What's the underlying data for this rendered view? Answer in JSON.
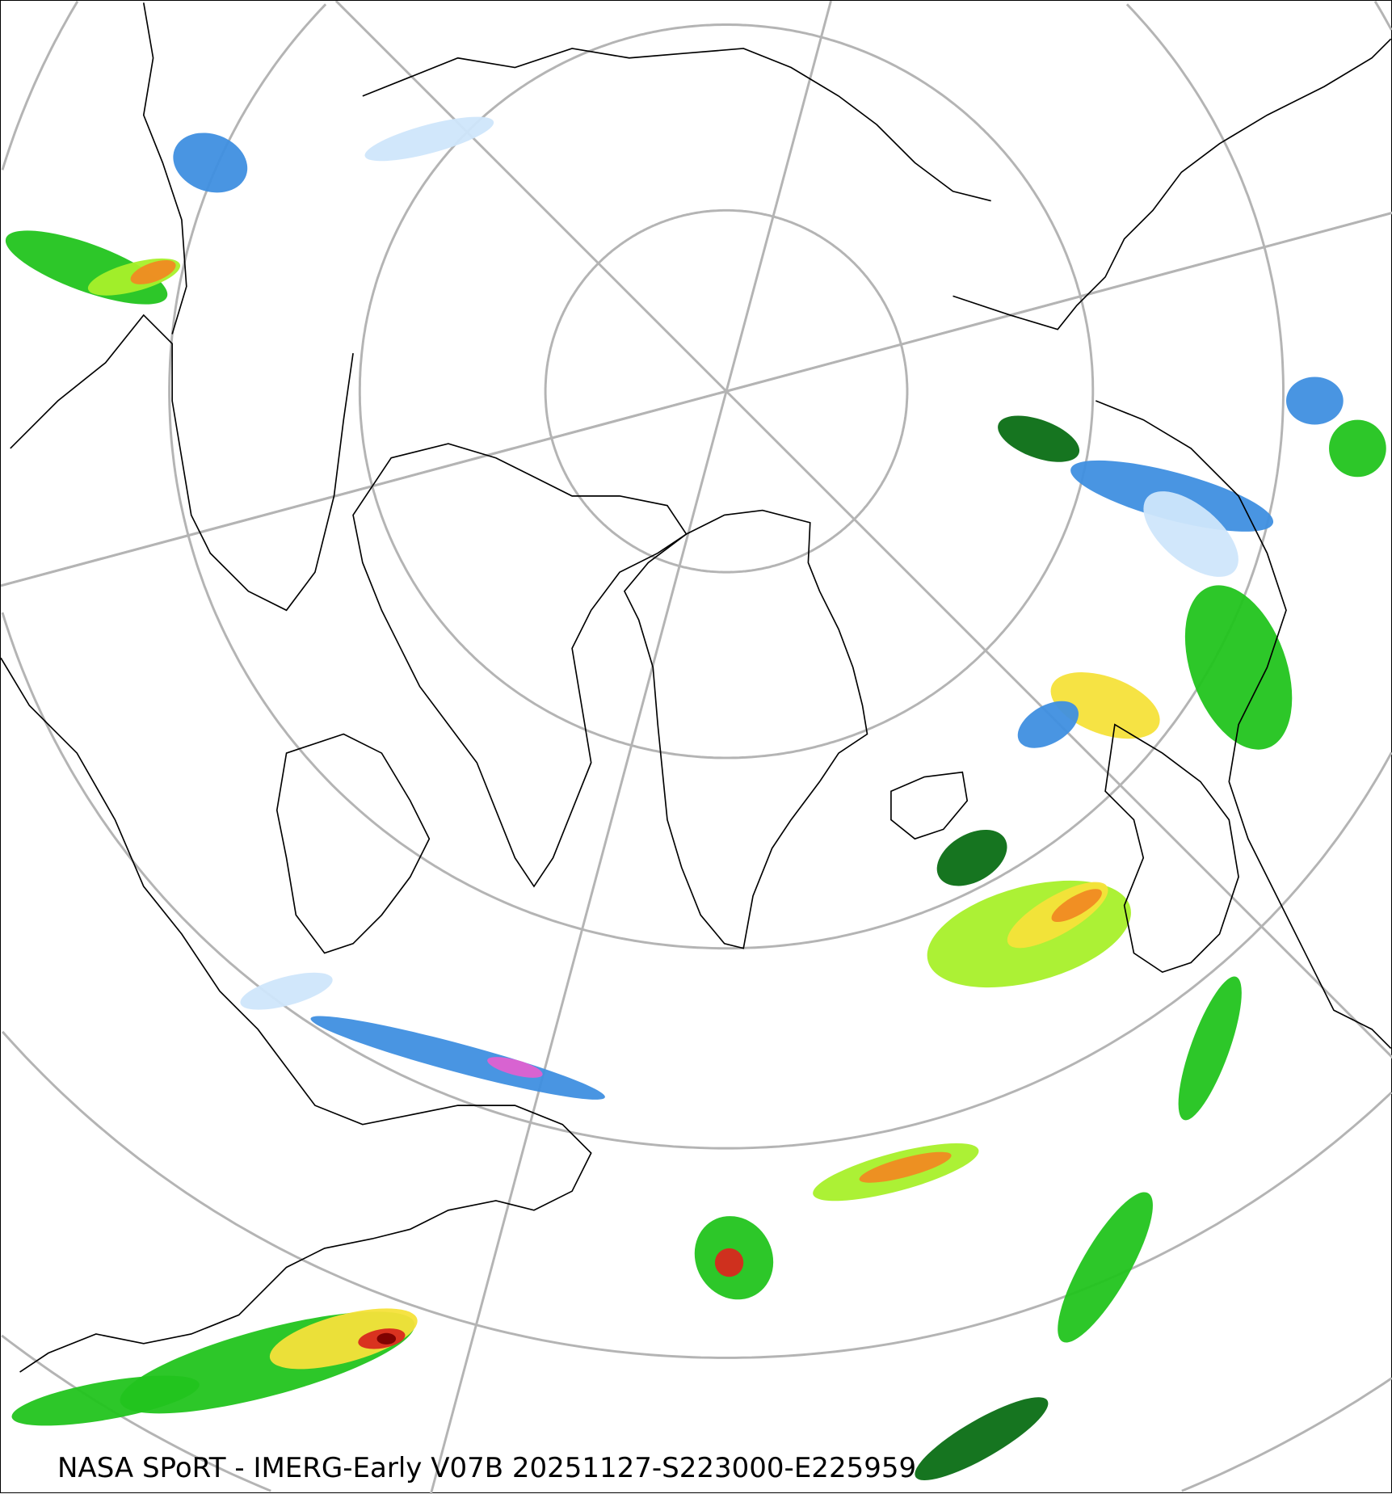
{
  "caption": "NASA SPoRT - IMERG-Early V07B 20251127-S223000-E225959",
  "map": {
    "projection": "north-polar-stereographic",
    "graticule": true,
    "coastlines": true,
    "borders": true
  },
  "colors": {
    "graticule": "#b4b4b4",
    "coast": "#000000",
    "precip_light_snow": "#cfe6fb",
    "precip_snow": "#3f8fe0",
    "precip_heavy_snow": "#e060d0",
    "precip_very_light": "#0a6e14",
    "precip_light": "#22c41e",
    "precip_moderate": "#a8f02a",
    "precip_heavy": "#f5e23a",
    "precip_very_heavy": "#f08a22",
    "precip_intense": "#d8281e",
    "precip_extreme": "#7a0000"
  }
}
